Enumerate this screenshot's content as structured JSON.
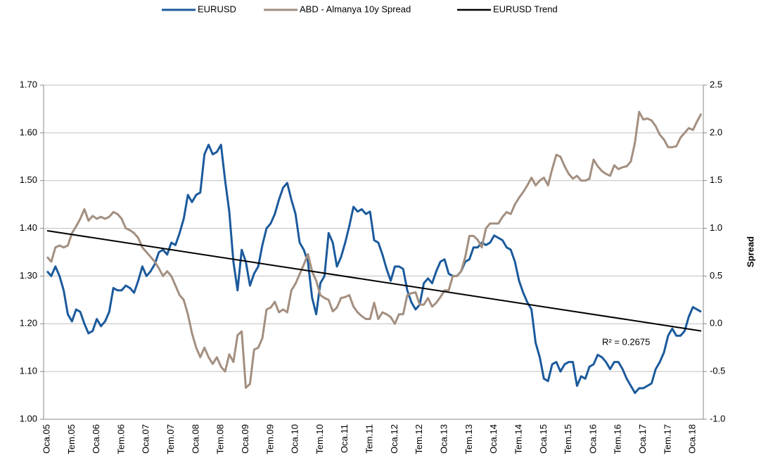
{
  "chart_data": {
    "type": "line",
    "categories": [
      "Oca.05",
      null,
      null,
      null,
      null,
      null,
      "Tem.05",
      null,
      null,
      null,
      null,
      null,
      "Oca.06",
      null,
      null,
      null,
      null,
      null,
      "Tem.06",
      null,
      null,
      null,
      null,
      null,
      "Oca.07",
      null,
      null,
      null,
      null,
      null,
      "Tem.07",
      null,
      null,
      null,
      null,
      null,
      "Oca.08",
      null,
      null,
      null,
      null,
      null,
      "Tem.08",
      null,
      null,
      null,
      null,
      null,
      "Oca.09",
      null,
      null,
      null,
      null,
      null,
      "Tem.09",
      null,
      null,
      null,
      null,
      null,
      "Oca.10",
      null,
      null,
      null,
      null,
      null,
      "Tem.10",
      null,
      null,
      null,
      null,
      null,
      "Oca.11",
      null,
      null,
      null,
      null,
      null,
      "Tem.11",
      null,
      null,
      null,
      null,
      null,
      "Oca.12",
      null,
      null,
      null,
      null,
      null,
      "Tem.12",
      null,
      null,
      null,
      null,
      null,
      "Oca.13",
      null,
      null,
      null,
      null,
      null,
      "Tem.13",
      null,
      null,
      null,
      null,
      null,
      "Oca.14",
      null,
      null,
      null,
      null,
      null,
      "Tem.14",
      null,
      null,
      null,
      null,
      null,
      "Oca.15",
      null,
      null,
      null,
      null,
      null,
      "Tem.15",
      null,
      null,
      null,
      null,
      null,
      "Oca.16",
      null,
      null,
      null,
      null,
      null,
      "Tem.16",
      null,
      null,
      null,
      null,
      null,
      "Oca.17",
      null,
      null,
      null,
      null,
      null,
      "Tem.17",
      null,
      null,
      null,
      null,
      null,
      "Oca.18",
      null,
      null
    ],
    "series": [
      {
        "name": "EURUSD",
        "color": "#1b5a9c",
        "values": [
          1.31,
          1.3,
          1.32,
          1.3,
          1.27,
          1.22,
          1.205,
          1.23,
          1.225,
          1.2,
          1.18,
          1.185,
          1.21,
          1.195,
          1.205,
          1.225,
          1.275,
          1.27,
          1.27,
          1.28,
          1.275,
          1.265,
          1.29,
          1.32,
          1.3,
          1.31,
          1.325,
          1.35,
          1.355,
          1.345,
          1.37,
          1.365,
          1.39,
          1.42,
          1.47,
          1.455,
          1.47,
          1.475,
          1.555,
          1.575,
          1.555,
          1.56,
          1.575,
          1.5,
          1.435,
          1.33,
          1.27,
          1.355,
          1.33,
          1.28,
          1.305,
          1.32,
          1.365,
          1.4,
          1.41,
          1.43,
          1.46,
          1.485,
          1.495,
          1.46,
          1.43,
          1.37,
          1.355,
          1.33,
          1.255,
          1.22,
          1.285,
          1.3,
          1.39,
          1.37,
          1.32,
          1.34,
          1.37,
          1.405,
          1.445,
          1.435,
          1.44,
          1.43,
          1.435,
          1.375,
          1.37,
          1.345,
          1.315,
          1.29,
          1.32,
          1.32,
          1.315,
          1.27,
          1.245,
          1.23,
          1.24,
          1.285,
          1.295,
          1.285,
          1.31,
          1.33,
          1.335,
          1.305,
          1.3,
          1.3,
          1.31,
          1.33,
          1.335,
          1.36,
          1.36,
          1.37,
          1.365,
          1.37,
          1.385,
          1.38,
          1.375,
          1.36,
          1.355,
          1.33,
          1.29,
          1.265,
          1.245,
          1.23,
          1.16,
          1.13,
          1.085,
          1.08,
          1.115,
          1.12,
          1.1,
          1.115,
          1.12,
          1.12,
          1.07,
          1.09,
          1.085,
          1.11,
          1.115,
          1.135,
          1.13,
          1.12,
          1.105,
          1.12,
          1.12,
          1.105,
          1.085,
          1.07,
          1.055,
          1.065,
          1.065,
          1.07,
          1.075,
          1.105,
          1.12,
          1.14,
          1.175,
          1.19,
          1.175,
          1.175,
          1.185,
          1.215,
          1.235,
          1.23,
          1.225
        ]
      },
      {
        "name": "ABD - Almanya 10y Spread",
        "color": "#a38f80",
        "axis": "y2",
        "values": [
          0.7,
          0.65,
          0.8,
          0.82,
          0.8,
          0.82,
          0.95,
          1.02,
          1.1,
          1.2,
          1.08,
          1.13,
          1.1,
          1.12,
          1.1,
          1.12,
          1.17,
          1.15,
          1.1,
          1.0,
          0.98,
          0.95,
          0.9,
          0.8,
          0.75,
          0.7,
          0.65,
          0.58,
          0.5,
          0.55,
          0.5,
          0.4,
          0.3,
          0.25,
          0.1,
          -0.1,
          -0.25,
          -0.35,
          -0.25,
          -0.35,
          -0.42,
          -0.35,
          -0.45,
          -0.5,
          -0.32,
          -0.4,
          -0.12,
          -0.08,
          -0.67,
          -0.63,
          -0.27,
          -0.25,
          -0.15,
          0.15,
          0.17,
          0.23,
          0.12,
          0.15,
          0.12,
          0.35,
          0.42,
          0.52,
          0.62,
          0.73,
          0.55,
          0.45,
          0.3,
          0.27,
          0.25,
          0.13,
          0.17,
          0.27,
          0.28,
          0.3,
          0.18,
          0.12,
          0.08,
          0.05,
          0.05,
          0.22,
          0.05,
          0.12,
          0.1,
          0.07,
          0.0,
          0.1,
          0.1,
          0.3,
          0.32,
          0.33,
          0.2,
          0.2,
          0.27,
          0.18,
          0.22,
          0.28,
          0.35,
          0.35,
          0.5,
          0.5,
          0.55,
          0.7,
          0.92,
          0.92,
          0.88,
          0.8,
          1.0,
          1.05,
          1.05,
          1.05,
          1.12,
          1.17,
          1.15,
          1.25,
          1.32,
          1.38,
          1.45,
          1.53,
          1.45,
          1.5,
          1.53,
          1.45,
          1.62,
          1.77,
          1.75,
          1.65,
          1.57,
          1.52,
          1.55,
          1.5,
          1.5,
          1.52,
          1.72,
          1.65,
          1.6,
          1.57,
          1.55,
          1.66,
          1.62,
          1.64,
          1.65,
          1.7,
          1.9,
          2.22,
          2.14,
          2.15,
          2.13,
          2.07,
          1.98,
          1.93,
          1.85,
          1.85,
          1.86,
          1.95,
          2.0,
          2.05,
          2.03,
          2.12,
          2.2
        ]
      }
    ],
    "trendline": {
      "name": "EURUSD Trend",
      "color": "#000000",
      "from": 1.395,
      "to": 1.185,
      "annotation": "R² = 0.2675"
    },
    "ylim": [
      1.0,
      1.7
    ],
    "yticks": [
      {
        "value": 1.0,
        "label": "1.00"
      },
      {
        "value": 1.1,
        "label": "1.10"
      },
      {
        "value": 1.2,
        "label": "1.20"
      },
      {
        "value": 1.3,
        "label": "1.30"
      },
      {
        "value": 1.4,
        "label": "1.40"
      },
      {
        "value": 1.5,
        "label": "1.50"
      },
      {
        "value": 1.6,
        "label": "1.60"
      },
      {
        "value": 1.7,
        "label": "1.70"
      }
    ],
    "y2lim": [
      -1.0,
      2.5
    ],
    "y2ticks": [
      {
        "value": -1.0,
        "label": "-1.0"
      },
      {
        "value": -0.5,
        "label": "-0.5"
      },
      {
        "value": 0,
        "label": "0.0"
      },
      {
        "value": 0.5,
        "label": "0.5"
      },
      {
        "value": 1.0,
        "label": "1.0"
      },
      {
        "value": 1.5,
        "label": "1.5"
      },
      {
        "value": 2.0,
        "label": "2.0"
      },
      {
        "value": 2.5,
        "label": "2.5"
      }
    ],
    "y2label": "Spread",
    "grid": true,
    "legend": "top"
  }
}
